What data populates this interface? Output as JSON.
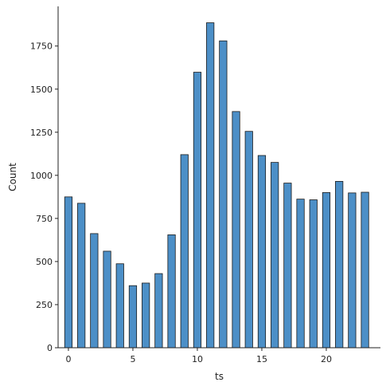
{
  "chart_data": {
    "type": "bar",
    "title": "",
    "xlabel": "ts",
    "ylabel": "Count",
    "xlim": [
      -0.8,
      24.2
    ],
    "ylim": [
      0,
      1980
    ],
    "bar_width": 0.58,
    "bar_color": "#4c8fc7",
    "grid": false,
    "x": [
      0,
      1,
      2,
      3,
      4,
      5,
      6,
      7,
      8,
      9,
      10,
      11,
      12,
      13,
      14,
      15,
      16,
      17,
      18,
      19,
      20,
      21,
      22,
      23
    ],
    "values": [
      875,
      838,
      662,
      560,
      487,
      360,
      375,
      430,
      655,
      1120,
      1598,
      1885,
      1780,
      1370,
      1255,
      1115,
      1075,
      955,
      862,
      858,
      900,
      965,
      898,
      902
    ],
    "xticks": [
      {
        "value": 0,
        "label": "0"
      },
      {
        "value": 5,
        "label": "5"
      },
      {
        "value": 10,
        "label": "10"
      },
      {
        "value": 15,
        "label": "15"
      },
      {
        "value": 20,
        "label": "20"
      }
    ],
    "yticks": [
      {
        "value": 0,
        "label": "0"
      },
      {
        "value": 250,
        "label": "250"
      },
      {
        "value": 500,
        "label": "500"
      },
      {
        "value": 750,
        "label": "750"
      },
      {
        "value": 1000,
        "label": "1000"
      },
      {
        "value": 1250,
        "label": "1250"
      },
      {
        "value": 1500,
        "label": "1500"
      },
      {
        "value": 1750,
        "label": "1750"
      }
    ]
  }
}
